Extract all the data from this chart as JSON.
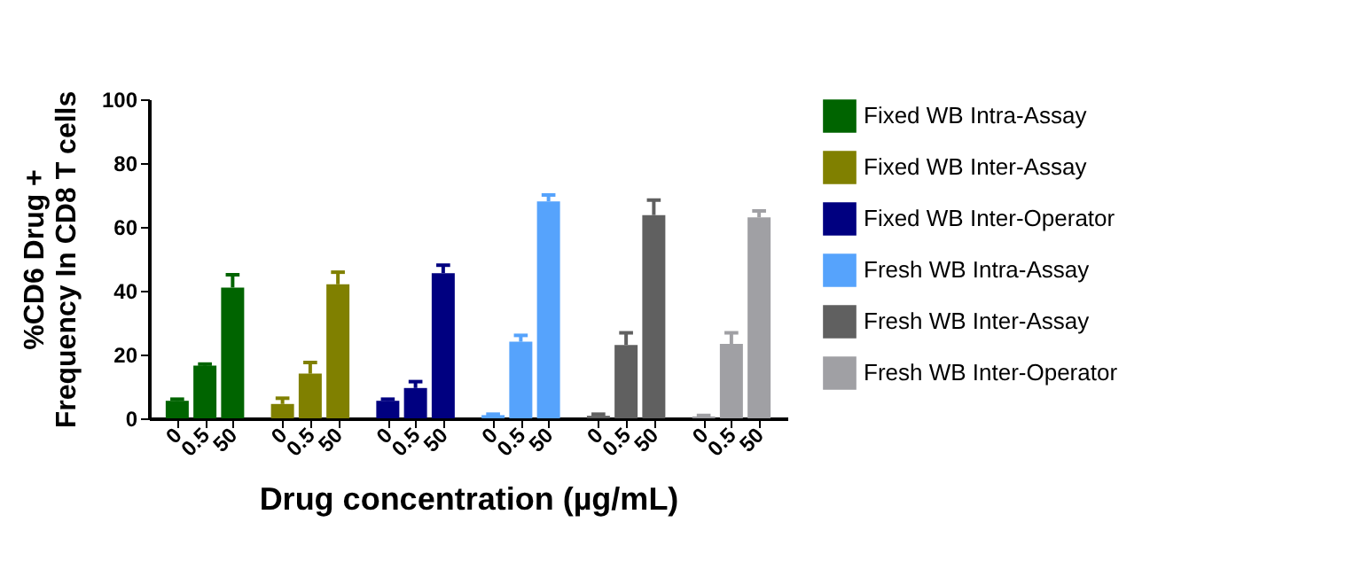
{
  "chart_data": {
    "type": "bar",
    "xlabel": "Drug concentration (µg/mL)",
    "ylabel": "%CD6  Drug  +\nFrequency In CD8 T cells",
    "categories": [
      "0",
      "0.5",
      "50",
      "0",
      "0.5",
      "50",
      "0",
      "0.5",
      "50",
      "0",
      "0.5",
      "50",
      "0",
      "0.5",
      "50",
      "0",
      "0.5",
      "50"
    ],
    "series": [
      {
        "name": "Fixed WB Intra-Assay",
        "color": "#006400",
        "values": [
          5.5,
          16.5,
          41,
          null,
          null,
          null,
          null,
          null,
          null,
          null,
          null,
          null,
          null,
          null,
          null,
          null,
          null,
          null
        ],
        "errors": [
          [
            5.5,
            6
          ],
          [
            16.5,
            17
          ],
          [
            41,
            45
          ],
          null,
          null,
          null,
          null,
          null,
          null,
          null,
          null,
          null,
          null,
          null,
          null,
          null,
          null,
          null
        ]
      },
      {
        "name": "Fixed WB Inter-Assay",
        "color": "#808000",
        "values": [
          null,
          null,
          null,
          4.5,
          14,
          42,
          null,
          null,
          null,
          null,
          null,
          null,
          null,
          null,
          null,
          null,
          null,
          null
        ],
        "errors": [
          null,
          null,
          null,
          [
            4.5,
            6.3
          ],
          [
            14,
            17.5
          ],
          [
            42,
            45.8
          ],
          null,
          null,
          null,
          null,
          null,
          null,
          null,
          null,
          null,
          null,
          null,
          null
        ]
      },
      {
        "name": "Fixed WB Inter-Operator",
        "color": "#000080",
        "values": [
          null,
          null,
          null,
          null,
          null,
          null,
          5.5,
          9.5,
          45.5,
          null,
          null,
          null,
          null,
          null,
          null,
          null,
          null,
          null
        ],
        "errors": [
          null,
          null,
          null,
          null,
          null,
          null,
          [
            5.5,
            6
          ],
          [
            9.5,
            11.5
          ],
          [
            45.5,
            48
          ],
          null,
          null,
          null,
          null,
          null,
          null,
          null,
          null,
          null
        ]
      },
      {
        "name": "Fresh WB Intra-Assay",
        "color": "#56a3fc",
        "values": [
          null,
          null,
          null,
          null,
          null,
          null,
          null,
          null,
          null,
          1,
          24,
          68,
          null,
          null,
          null,
          null,
          null,
          null
        ],
        "errors": [
          null,
          null,
          null,
          null,
          null,
          null,
          null,
          null,
          null,
          [
            1,
            1.3
          ],
          [
            24,
            26
          ],
          [
            68,
            70
          ],
          null,
          null,
          null,
          null,
          null,
          null
        ]
      },
      {
        "name": "Fresh WB Inter-Assay",
        "color": "#606060",
        "values": [
          null,
          null,
          null,
          null,
          null,
          null,
          null,
          null,
          null,
          null,
          null,
          null,
          0.8,
          23,
          63.7,
          null,
          null,
          null
        ],
        "errors": [
          null,
          null,
          null,
          null,
          null,
          null,
          null,
          null,
          null,
          null,
          null,
          null,
          [
            0.8,
            1.3
          ],
          [
            23,
            26.8
          ],
          [
            63.7,
            68.4
          ],
          null,
          null,
          null
        ]
      },
      {
        "name": "Fresh WB Inter-Operator",
        "color": "#a0a0a4",
        "values": [
          null,
          null,
          null,
          null,
          null,
          null,
          null,
          null,
          null,
          null,
          null,
          null,
          null,
          null,
          null,
          0.6,
          23.3,
          63
        ],
        "errors": [
          null,
          null,
          null,
          null,
          null,
          null,
          null,
          null,
          null,
          null,
          null,
          null,
          null,
          null,
          null,
          [
            0.6,
            0.9
          ],
          [
            23.3,
            26.8
          ],
          [
            63,
            65
          ]
        ]
      }
    ],
    "ylim": [
      0,
      100
    ],
    "yticks": [
      0,
      20,
      40,
      60,
      80,
      100
    ],
    "legend": "right"
  }
}
